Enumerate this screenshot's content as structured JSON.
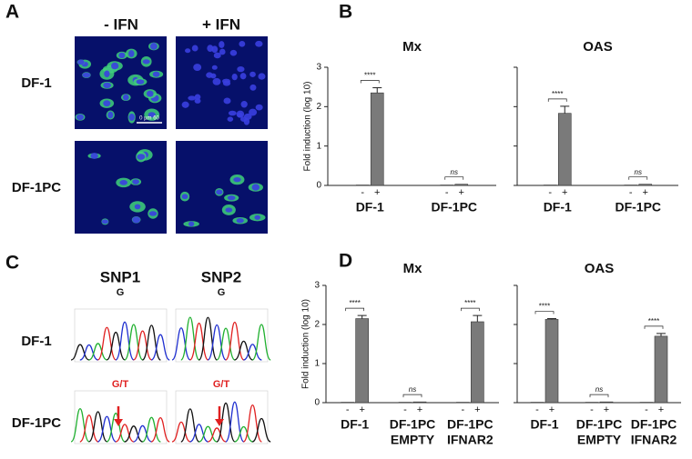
{
  "panels": {
    "a": "A",
    "b": "B",
    "c": "C",
    "d": "D"
  },
  "microscopy": {
    "columns": [
      "- IFN",
      "+ IFN"
    ],
    "rows": [
      "DF-1",
      "DF-1PC"
    ],
    "scale_bar": "0  µm 60"
  },
  "sequencing": {
    "columns": [
      "SNP1",
      "SNP2"
    ],
    "rows": [
      "DF-1",
      "DF-1PC"
    ],
    "base_calls": [
      [
        "G",
        "G"
      ],
      [
        "G/T",
        "G/T"
      ]
    ]
  },
  "chart_data": [
    {
      "type": "bar",
      "title": "Mx",
      "ylabel": "Fold induction (log 10)",
      "categories": [
        [
          "DF-1"
        ],
        [
          "DF-1PC"
        ]
      ],
      "series": [
        {
          "name": "-",
          "color": "#7a7a7a",
          "values": [
            0.01,
            0.01
          ]
        },
        {
          "name": "+",
          "color": "#7a7a7a",
          "values": [
            2.35,
            0.03
          ],
          "errors": [
            0.13,
            null
          ]
        }
      ],
      "significance": [
        "****",
        "ns"
      ],
      "ylim": [
        0,
        3
      ],
      "yticks": [
        0,
        1,
        2,
        3
      ],
      "tick_labels": true
    },
    {
      "type": "bar",
      "title": "OAS",
      "categories": [
        [
          "DF-1"
        ],
        [
          "DF-1PC"
        ]
      ],
      "series": [
        {
          "name": "-",
          "color": "#7a7a7a",
          "values": [
            0.01,
            0.01
          ]
        },
        {
          "name": "+",
          "color": "#7a7a7a",
          "values": [
            1.83,
            0.03
          ],
          "errors": [
            0.18,
            null
          ]
        }
      ],
      "significance": [
        "****",
        "ns"
      ],
      "ylim": [
        0,
        3
      ],
      "yticks": [
        0,
        1,
        2,
        3
      ],
      "tick_labels": false
    },
    {
      "type": "bar",
      "title": "Mx",
      "ylabel": "Fold induction (log 10)",
      "categories": [
        [
          "DF-1"
        ],
        [
          "DF-1PC",
          "EMPTY"
        ],
        [
          "DF-1PC",
          "IFNAR2"
        ]
      ],
      "series": [
        {
          "name": "-",
          "color": "#7a7a7a",
          "values": [
            0.01,
            0.01,
            0.01
          ]
        },
        {
          "name": "+",
          "color": "#7a7a7a",
          "values": [
            2.15,
            0.02,
            2.07
          ],
          "errors": [
            0.08,
            null,
            0.16
          ]
        }
      ],
      "significance": [
        "****",
        "ns",
        "****"
      ],
      "ylim": [
        0,
        3
      ],
      "yticks": [
        0,
        1,
        2,
        3
      ],
      "tick_labels": true
    },
    {
      "type": "bar",
      "title": "OAS",
      "categories": [
        [
          "DF-1"
        ],
        [
          "DF-1PC",
          "EMPTY"
        ],
        [
          "DF-1PC",
          "IFNAR2"
        ]
      ],
      "series": [
        {
          "name": "-",
          "color": "#7a7a7a",
          "values": [
            0.01,
            0.01,
            0.01
          ]
        },
        {
          "name": "+",
          "color": "#7a7a7a",
          "values": [
            2.13,
            0.02,
            1.7
          ],
          "errors": [
            0.02,
            null,
            0.07
          ]
        }
      ],
      "significance": [
        "****",
        "ns",
        "****"
      ],
      "ylim": [
        0,
        3
      ],
      "yticks": [
        0,
        1,
        2,
        3
      ],
      "tick_labels": false
    }
  ]
}
